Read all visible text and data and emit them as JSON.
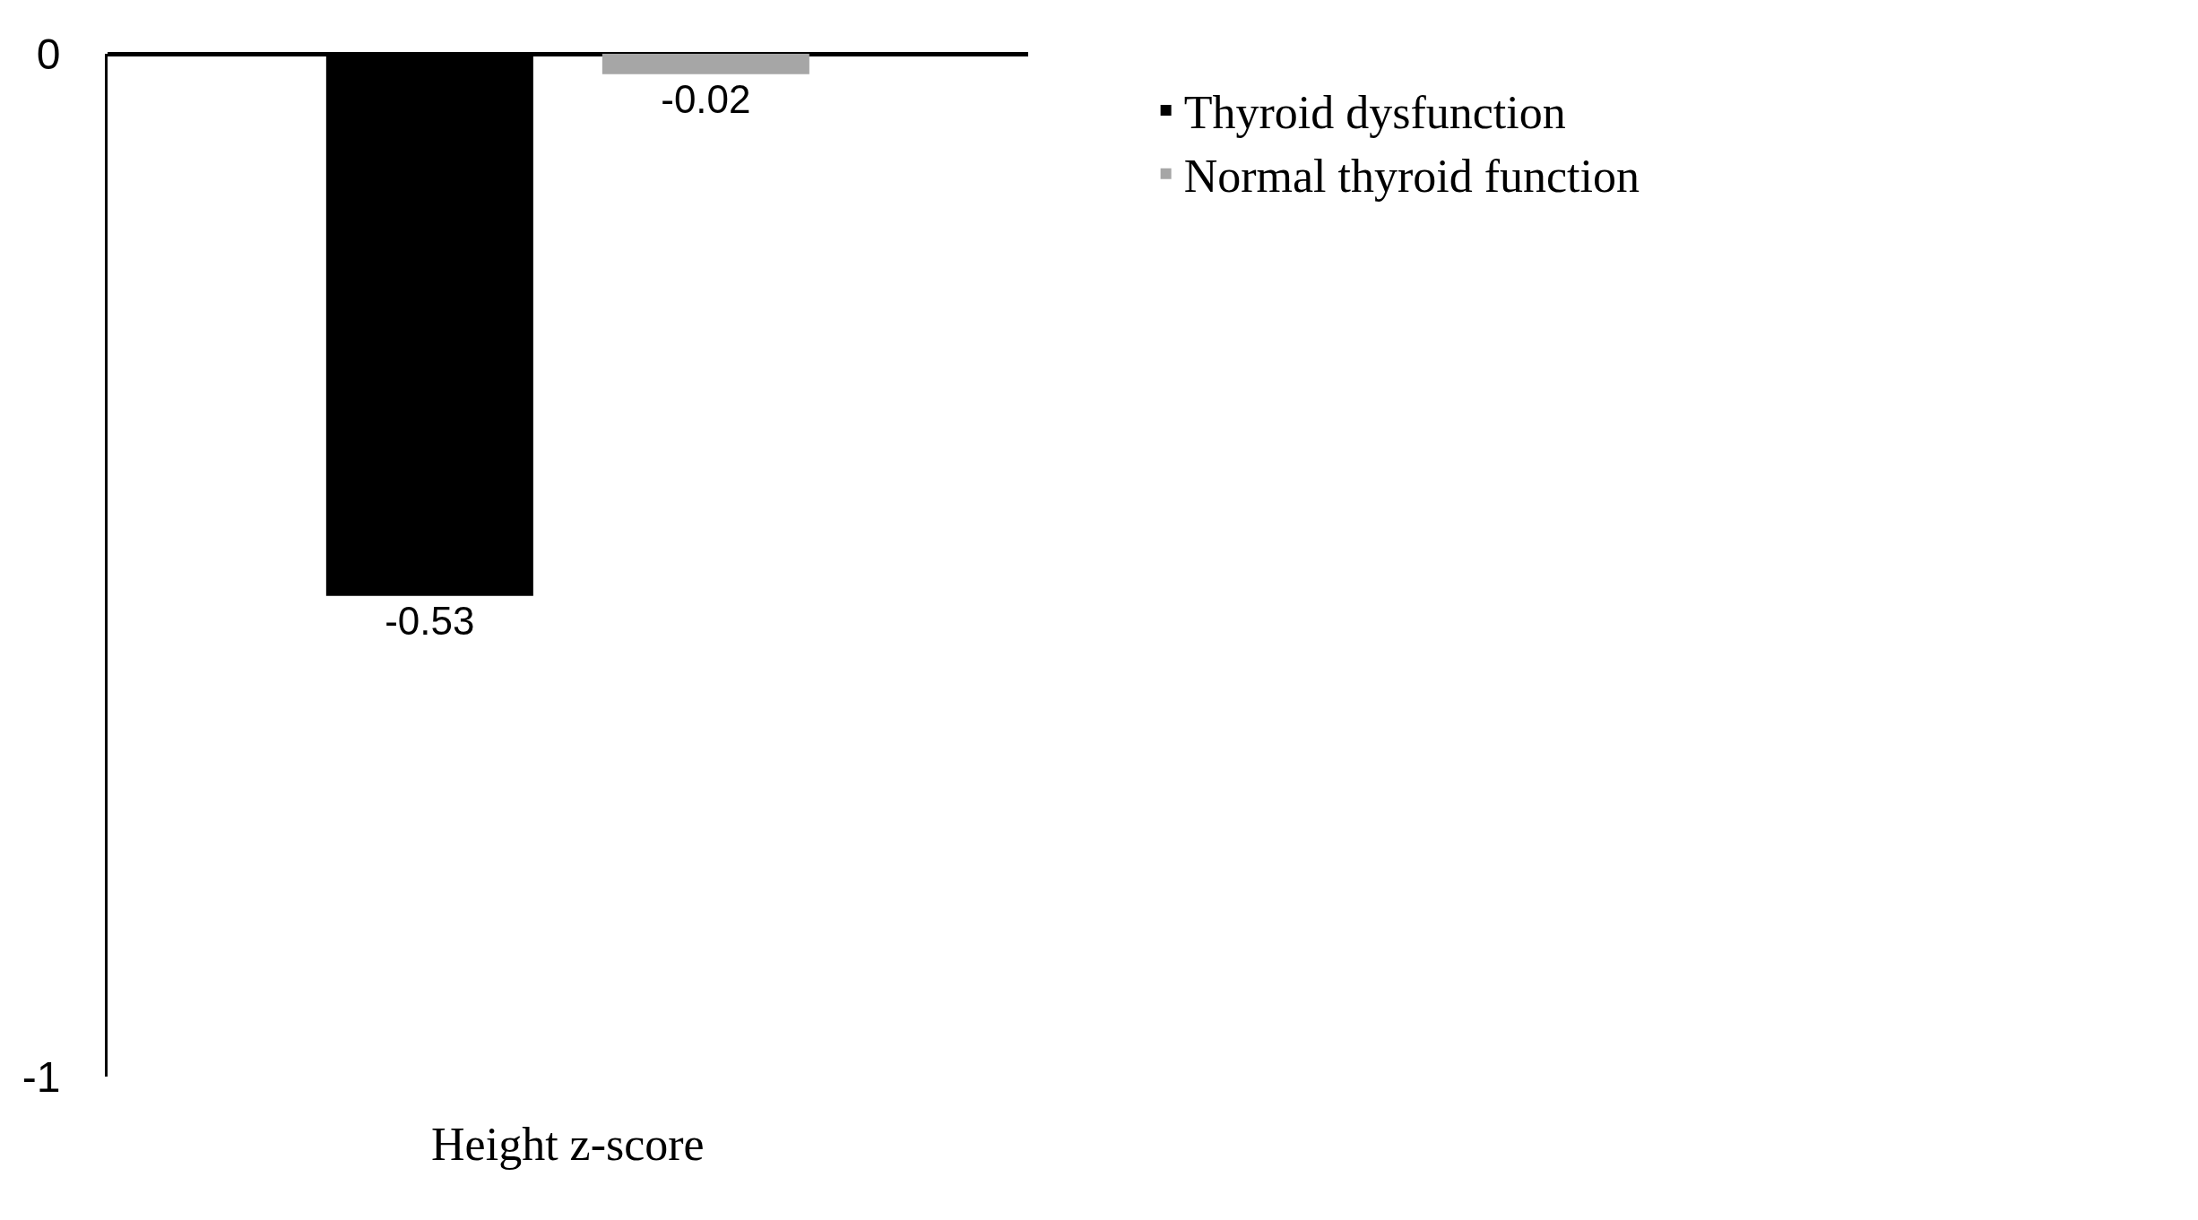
{
  "chart_data": {
    "type": "bar",
    "categories": [
      "Height z-score"
    ],
    "series": [
      {
        "name": "Thyroid dysfunction",
        "color": "#000000",
        "values": [
          -0.53
        ]
      },
      {
        "name": "Normal thyroid function",
        "color": "#a6a6a6",
        "values": [
          -0.02
        ]
      }
    ],
    "ylim": [
      -1,
      0
    ],
    "yticks": [
      0,
      -1
    ],
    "legend": "top right",
    "data_labels": true
  }
}
